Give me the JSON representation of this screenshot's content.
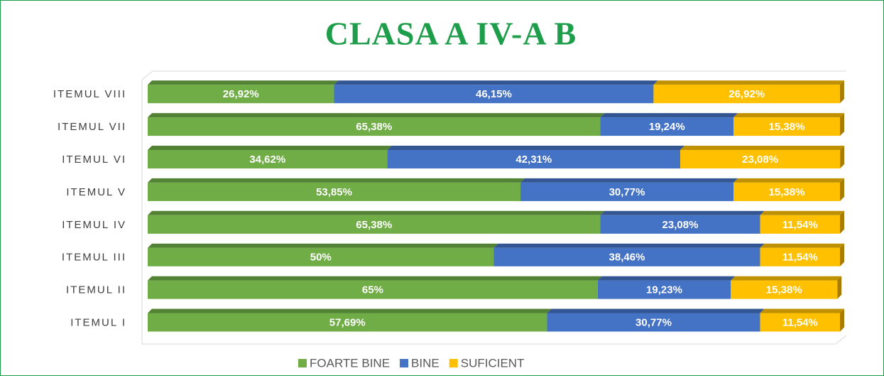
{
  "chart_data": {
    "type": "stacked_bar_horizontal",
    "title": "CLASA A IV-A B",
    "categories": [
      "ITEMUL I",
      "ITEMUL II",
      "ITEMUL III",
      "ITEMUL IV",
      "ITEMUL V",
      "ITEMUL VI",
      "ITEMUL VII",
      "ITEMUL VIII"
    ],
    "xlim": [
      0,
      100
    ],
    "series": [
      {
        "name": "FOARTE BINE",
        "color": "#70ad47",
        "values": [
          57.69,
          65,
          50,
          65.38,
          53.85,
          34.62,
          65.38,
          26.92
        ],
        "value_labels": [
          "57,69%",
          "65%",
          "50%",
          "65,38%",
          "53,85%",
          "34,62%",
          "65,38%",
          "26,92%"
        ]
      },
      {
        "name": "BINE",
        "color": "#4472c4",
        "values": [
          30.77,
          19.23,
          38.46,
          23.08,
          30.77,
          42.31,
          19.24,
          46.15
        ],
        "value_labels": [
          "30,77%",
          "19,23%",
          "38,46%",
          "23,08%",
          "30,77%",
          "42,31%",
          "19,24%",
          "46,15%"
        ]
      },
      {
        "name": "SUFICIENT",
        "color": "#ffc000",
        "values": [
          11.54,
          15.38,
          11.54,
          11.54,
          15.38,
          23.08,
          15.38,
          26.92
        ],
        "value_labels": [
          "11,54%",
          "15,38%",
          "11,54%",
          "11,54%",
          "15,38%",
          "23,08%",
          "15,38%",
          "26,92%"
        ]
      }
    ],
    "legend": "bottom"
  }
}
